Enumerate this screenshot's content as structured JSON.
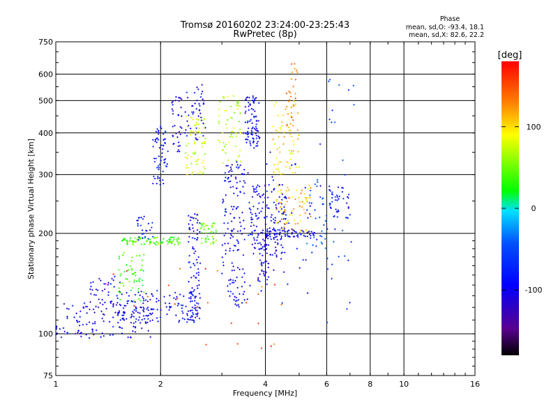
{
  "chart_data": {
    "type": "scatter",
    "title": "Tromsø 20160202 23:24:00-23:25:43",
    "subtitle": "RwPretec (8p)",
    "xlabel": "Frequency [MHz]",
    "ylabel": "Stationary phase Virtual Height [km]",
    "x_scale": "log",
    "y_scale": "log",
    "xlim": [
      1,
      16
    ],
    "ylim": [
      75,
      750
    ],
    "x_ticks": [
      1,
      2,
      4,
      6,
      8,
      10,
      16
    ],
    "x_tick_labels": [
      "1",
      "2",
      "4",
      "6",
      "8",
      "10",
      "16"
    ],
    "y_ticks": [
      75,
      100,
      200,
      300,
      400,
      500,
      600,
      750
    ],
    "y_tick_labels": [
      "75",
      "100",
      "200",
      "300",
      "400",
      "500",
      "600",
      "750"
    ],
    "x_gridlines": [
      2,
      4,
      6,
      8,
      10
    ],
    "y_gridlines": [
      100,
      200,
      300,
      400,
      500,
      600
    ],
    "grid": true,
    "stats": {
      "heading": "Phase",
      "line_O": "mean, sd,O: -93.4, 18.1",
      "line_X": "mean, sd,X:  82.6, 22.2"
    },
    "colorbar": {
      "label": "[deg]",
      "range": [
        -180,
        180
      ],
      "ticks": [
        100,
        0,
        -100
      ],
      "tick_labels": [
        "100",
        "0",
        "-100"
      ],
      "colors": [
        "#000000",
        "#5a0090",
        "#0000ff",
        "#00a0ff",
        "#00ff00",
        "#ffff00",
        "#ff8000",
        "#ff0000"
      ]
    },
    "clusters": [
      {
        "x": [
          1.0,
          1.9
        ],
        "y": [
          97,
          125
        ],
        "phase": -105,
        "n": 130
      },
      {
        "x": [
          1.5,
          2.6
        ],
        "y": [
          108,
          135
        ],
        "phase": -100,
        "n": 120
      },
      {
        "x": [
          1.25,
          1.55
        ],
        "y": [
          118,
          150
        ],
        "phase": -110,
        "n": 40
      },
      {
        "x": [
          1.5,
          1.8
        ],
        "y": [
          125,
          175
        ],
        "phase": 35,
        "n": 55
      },
      {
        "x": [
          1.55,
          2.3
        ],
        "y": [
          185,
          195
        ],
        "phase": 40,
        "n": 85
      },
      {
        "x": [
          1.7,
          1.9
        ],
        "y": [
          190,
          225
        ],
        "phase": -90,
        "n": 25
      },
      {
        "x": [
          1.9,
          2.1
        ],
        "y": [
          280,
          420
        ],
        "phase": -95,
        "n": 60
      },
      {
        "x": [
          2.15,
          2.3
        ],
        "y": [
          350,
          520
        ],
        "phase": -110,
        "n": 35
      },
      {
        "x": [
          2.35,
          2.7
        ],
        "y": [
          300,
          450
        ],
        "phase": 80,
        "n": 70
      },
      {
        "x": [
          2.35,
          2.7
        ],
        "y": [
          380,
          560
        ],
        "phase": -100,
        "n": 45
      },
      {
        "x": [
          2.4,
          2.6
        ],
        "y": [
          110,
          230
        ],
        "phase": -105,
        "n": 90
      },
      {
        "x": [
          2.6,
          2.9
        ],
        "y": [
          185,
          215
        ],
        "phase": 45,
        "n": 40
      },
      {
        "x": [
          2.9,
          3.4
        ],
        "y": [
          310,
          520
        ],
        "phase": 70,
        "n": 60
      },
      {
        "x": [
          3.0,
          3.5
        ],
        "y": [
          120,
          330
        ],
        "phase": -100,
        "n": 130
      },
      {
        "x": [
          3.5,
          3.85
        ],
        "y": [
          360,
          520
        ],
        "phase": -100,
        "n": 85
      },
      {
        "x": [
          3.6,
          4.6
        ],
        "y": [
          170,
          280
        ],
        "phase": -105,
        "n": 160
      },
      {
        "x": [
          3.8,
          4.1
        ],
        "y": [
          140,
          210
        ],
        "phase": -110,
        "n": 45
      },
      {
        "x": [
          4.2,
          5.0
        ],
        "y": [
          300,
          500
        ],
        "phase": 100,
        "n": 70
      },
      {
        "x": [
          4.3,
          5.4
        ],
        "y": [
          200,
          280
        ],
        "phase": 110,
        "n": 80
      },
      {
        "x": [
          4.6,
          5.0
        ],
        "y": [
          420,
          660
        ],
        "phase": 140,
        "n": 25
      },
      {
        "x": [
          4.0,
          5.6
        ],
        "y": [
          195,
          205
        ],
        "phase": -100,
        "n": 60
      },
      {
        "x": [
          5.2,
          6.0
        ],
        "y": [
          180,
          300
        ],
        "phase": -60,
        "n": 35
      },
      {
        "x": [
          6.1,
          7.0
        ],
        "y": [
          220,
          280
        ],
        "phase": -95,
        "n": 40
      },
      {
        "x": [
          6.0,
          7.2
        ],
        "y": [
          100,
          600
        ],
        "phase": -70,
        "n": 30
      },
      {
        "x": [
          1.3,
          4.8
        ],
        "y": [
          90,
          160
        ],
        "phase": 150,
        "n": 25
      },
      {
        "x": [
          3.0,
          5.8
        ],
        "y": [
          120,
          420
        ],
        "phase": -100,
        "n": 60
      }
    ]
  }
}
